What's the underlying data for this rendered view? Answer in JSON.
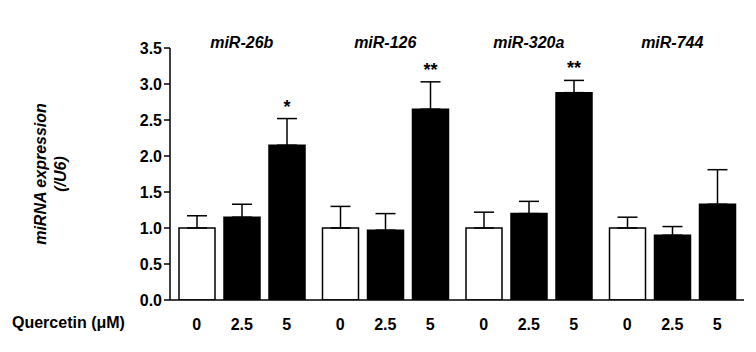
{
  "chart_data": {
    "type": "bar",
    "categories": [
      "miR-26b",
      "miR-126",
      "miR-320a",
      "miR-744"
    ],
    "x_label": "Quercetin (μM)",
    "y_label": [
      "miRNA expression",
      "(/U6)"
    ],
    "series": [
      {
        "name": "0",
        "color": "#ffffff",
        "values": [
          1.0,
          1.0,
          1.0,
          1.0
        ],
        "errors": [
          0.17,
          0.3,
          0.22,
          0.15
        ]
      },
      {
        "name": "2.5",
        "color": "#000000",
        "values": [
          1.15,
          0.97,
          1.2,
          0.9
        ],
        "errors": [
          0.18,
          0.23,
          0.17,
          0.12
        ]
      },
      {
        "name": "5",
        "color": "#000000",
        "values": [
          2.15,
          2.65,
          2.88,
          1.33
        ],
        "errors": [
          0.37,
          0.38,
          0.17,
          0.48
        ],
        "significance": [
          "*",
          "**",
          "**",
          null
        ]
      }
    ],
    "ylim": [
      0,
      3.5
    ],
    "yticks": [
      {
        "value": 0,
        "label": "0.0"
      },
      {
        "value": 0.5,
        "label": "0.5"
      },
      {
        "value": 1,
        "label": "1.0"
      },
      {
        "value": 1.5,
        "label": "1.5"
      },
      {
        "value": 2,
        "label": "2.0"
      },
      {
        "value": 2.5,
        "label": "2.5"
      },
      {
        "value": 3,
        "label": "3.0"
      },
      {
        "value": 3.5,
        "label": "3.5"
      }
    ],
    "grid": false
  }
}
